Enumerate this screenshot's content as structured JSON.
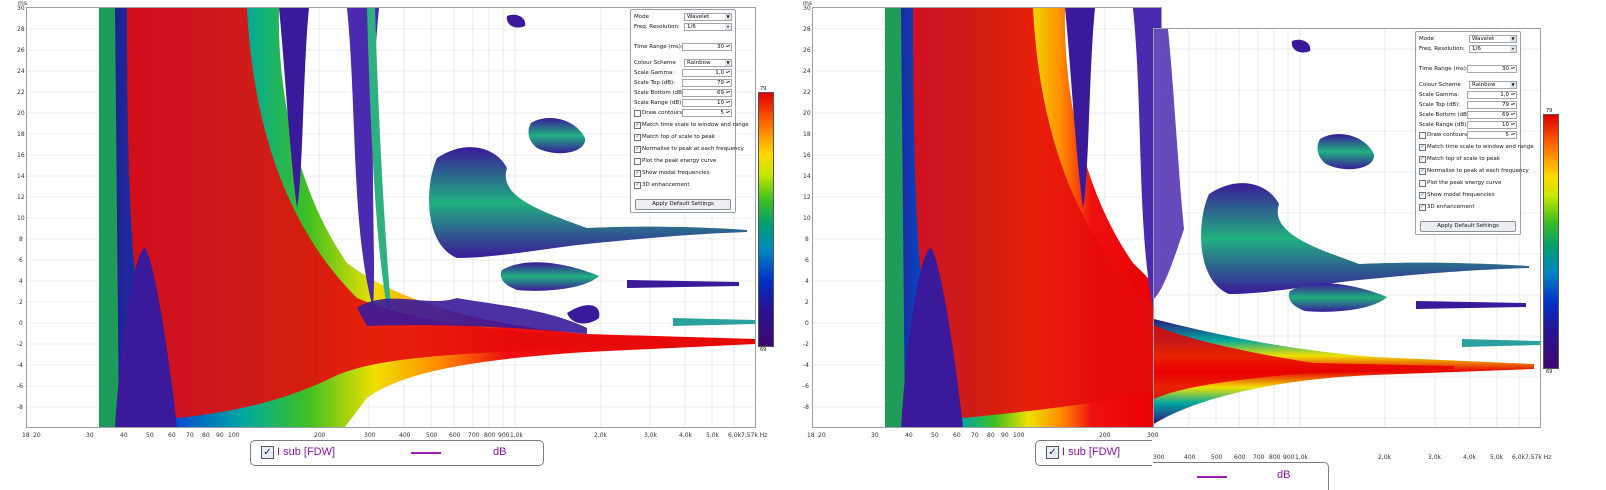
{
  "plot": {
    "y_unit": "ms",
    "y_ticks": [
      "30",
      "28",
      "26",
      "24",
      "22",
      "20",
      "18",
      "16",
      "14",
      "12",
      "10",
      "8",
      "6",
      "4",
      "2",
      "0",
      "-2",
      "-4",
      "-6",
      "-8"
    ],
    "x_ticks": [
      "18",
      "20",
      "30",
      "40",
      "50",
      "60",
      "70",
      "80",
      "90",
      "100",
      "200",
      "300",
      "400",
      "500",
      "600",
      "700",
      "800",
      "900",
      "1,0k",
      "2,0k",
      "3,0k",
      "4,0k",
      "5,0k",
      "6,0k",
      "7,57k Hz"
    ],
    "x_ticks_right": [
      "18",
      "20",
      "30",
      "40",
      "50",
      "60",
      "70",
      "80",
      "90",
      "100",
      "200",
      "300",
      "400",
      "500",
      "600",
      "700",
      "800",
      "900",
      "1,0k",
      "2,0k",
      "3,0k",
      "4,0k",
      "5,0k",
      "6,0k",
      "7,57k Hz"
    ],
    "x_ticks_overlay": [
      "300",
      "400",
      "500",
      "600",
      "700",
      "800",
      "900",
      "1,0k",
      "2,0k",
      "3,0k",
      "4,0k",
      "5,0k",
      "6,0k",
      "7,57k Hz"
    ]
  },
  "controls": {
    "mode_label": "Mode",
    "mode_value": "Wavelet",
    "freq_label": "Freq. Resolution:",
    "freq_value": "1/6",
    "time_range_label": "Time Range (ms):",
    "time_range_value": "30",
    "colour_scheme_label": "Colour Scheme",
    "colour_scheme_value": "Rainbow",
    "scale_gamma_label": "Scale Gamma:",
    "scale_gamma_value": "1,0",
    "scale_top_label": "Scale Top (dB):",
    "scale_top_value": "79",
    "scale_bottom_label": "Scale Bottom (dB):",
    "scale_bottom_value": "69",
    "scale_range_label": "Scale Range (dB):",
    "scale_range_value": "10",
    "draw_contours_label": "Draw contours",
    "draw_contours_value": "5",
    "checks": [
      {
        "label": "Match time scale to window and range",
        "checked": true
      },
      {
        "label": "Match top of scale to peak",
        "checked": true
      },
      {
        "label": "Normalise to peak at each frequency",
        "checked": true
      },
      {
        "label": "Plot the peak energy curve",
        "checked": false
      },
      {
        "label": "Show modal frequencies",
        "checked": true
      },
      {
        "label": "3D enhancement",
        "checked": true
      }
    ],
    "apply_button": "Apply Default Settings"
  },
  "colorbar": {
    "top": "79",
    "bottom": "69"
  },
  "legend": {
    "name": "I sub [FDW]",
    "unit": "dB",
    "line_color": "#a21ab8",
    "checked": true
  },
  "colors": {
    "plot_border": "#9aa0a8",
    "legend_text": "#8a12a3"
  }
}
